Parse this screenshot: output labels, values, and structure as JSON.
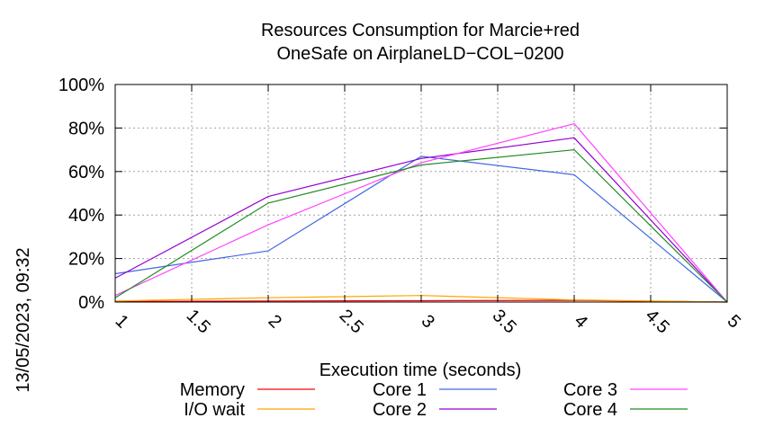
{
  "chart_data": {
    "type": "line",
    "title_lines": [
      "Resources Consumption for Marcie+red",
      "OneSafe on AirplaneLD−COL−0200"
    ],
    "xlabel": "Execution time (seconds)",
    "ylabel": "",
    "timestamp": "13/05/2023, 09:32",
    "xlim": [
      1,
      5
    ],
    "ylim": [
      0,
      100
    ],
    "x_ticks": [
      1,
      1.5,
      2,
      2.5,
      3,
      3.5,
      4,
      4.5,
      5
    ],
    "x_tick_labels": [
      "1",
      "1.5",
      "2",
      "2.5",
      "3",
      "3.5",
      "4",
      "4.5",
      "5"
    ],
    "y_ticks": [
      0,
      20,
      40,
      60,
      80,
      100
    ],
    "y_tick_labels": [
      "0%",
      "20%",
      "40%",
      "60%",
      "80%",
      "100%"
    ],
    "grid": true,
    "legend_position": "bottom",
    "series": [
      {
        "name": "Memory",
        "color": "#ff0000",
        "x": [
          1,
          2,
          3,
          4,
          5
        ],
        "values": [
          0.3,
          0.5,
          0.6,
          0.8,
          0
        ]
      },
      {
        "name": "I/O wait",
        "color": "#ffa500",
        "x": [
          1,
          2,
          3,
          4,
          5
        ],
        "values": [
          0.5,
          2,
          3,
          1,
          0
        ]
      },
      {
        "name": "Core 1",
        "color": "#4169e1",
        "x": [
          1,
          2,
          3,
          4,
          5
        ],
        "values": [
          13,
          23.5,
          67,
          58.5,
          0
        ]
      },
      {
        "name": "Core 2",
        "color": "#9400d3",
        "x": [
          1,
          2,
          3,
          4,
          5
        ],
        "values": [
          11,
          48.5,
          66,
          75.5,
          0
        ]
      },
      {
        "name": "Core 3",
        "color": "#ff44ff",
        "x": [
          1,
          2,
          3,
          4,
          5
        ],
        "values": [
          3,
          35.5,
          64,
          82,
          0
        ]
      },
      {
        "name": "Core 4",
        "color": "#228b22",
        "x": [
          1,
          2,
          3,
          4,
          5
        ],
        "values": [
          2,
          45.5,
          63,
          70,
          0
        ]
      }
    ]
  }
}
